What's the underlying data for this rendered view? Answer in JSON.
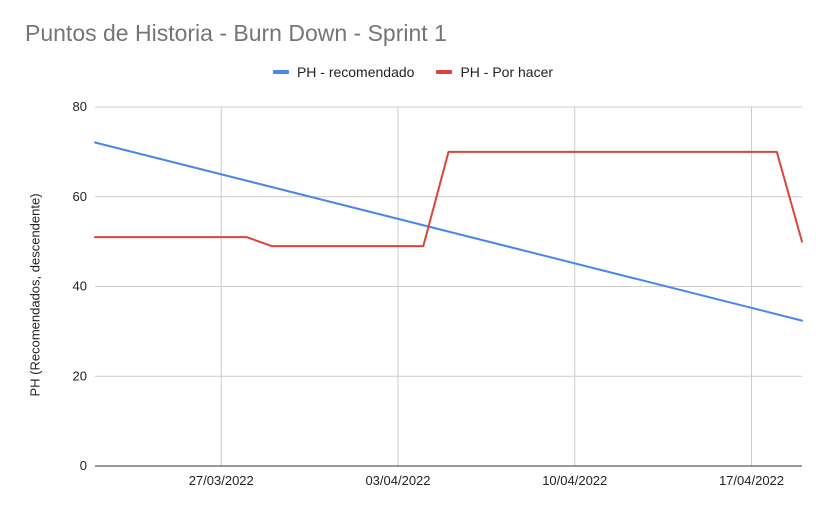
{
  "chart_data": {
    "type": "line",
    "title": "Puntos de Historia - Burn Down - Sprint 1",
    "xlabel": "",
    "ylabel": "PH (Recomendados, descendente)",
    "x_range": [
      "2022-03-22",
      "2022-04-19"
    ],
    "ylim": [
      0,
      80
    ],
    "y_ticks": [
      0,
      20,
      40,
      60,
      80
    ],
    "x_ticks": [
      {
        "date": "2022-03-27",
        "label": "27/03/2022"
      },
      {
        "date": "2022-04-03",
        "label": "03/04/2022"
      },
      {
        "date": "2022-04-10",
        "label": "10/04/2022"
      },
      {
        "date": "2022-04-17",
        "label": "17/04/2022"
      }
    ],
    "grid": true,
    "legend_position": "top",
    "series": [
      {
        "name": "PH - recomendado",
        "color": "#4a86e8",
        "points": [
          [
            "2022-03-22",
            72.1
          ],
          [
            "2022-04-19",
            32.4
          ]
        ]
      },
      {
        "name": "PH - Por hacer",
        "color": "#db4437",
        "points": [
          [
            "2022-03-22",
            51
          ],
          [
            "2022-03-28",
            51
          ],
          [
            "2022-03-29",
            49
          ],
          [
            "2022-04-04",
            49
          ],
          [
            "2022-04-05",
            70
          ],
          [
            "2022-04-18",
            70
          ],
          [
            "2022-04-19",
            50
          ]
        ]
      }
    ]
  }
}
